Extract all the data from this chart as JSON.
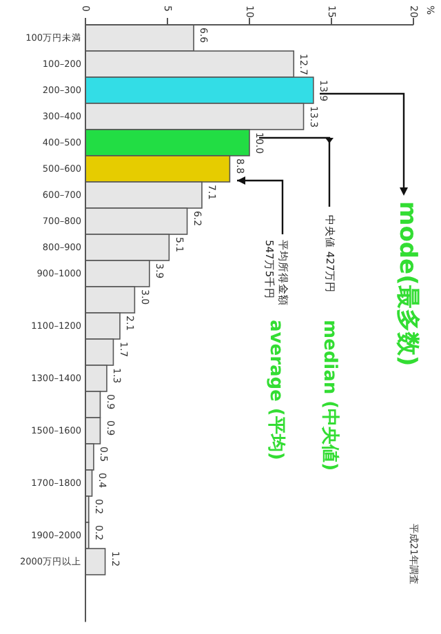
{
  "chart_data": {
    "type": "bar",
    "orientation": "horizontal",
    "categories": [
      "100万円未満",
      "100–200",
      "200–300",
      "300–400",
      "400–500",
      "500–600",
      "600–700",
      "700–800",
      "800–900",
      "900–1000",
      null,
      "1100–1200",
      null,
      "1300–1400",
      null,
      "1500–1600",
      null,
      "1700–1800",
      null,
      "1900–2000",
      "2000万円以上"
    ],
    "values": [
      6.6,
      12.7,
      13.9,
      13.3,
      10.0,
      8.8,
      7.1,
      6.2,
      5.1,
      3.9,
      3.0,
      2.1,
      1.7,
      1.3,
      0.9,
      0.9,
      0.5,
      0.4,
      0.2,
      0.2,
      1.2
    ],
    "value_labels": [
      "6.6",
      "12.7",
      "13.9",
      "13.3",
      "10.0",
      "8.8",
      "7.1",
      "6.2",
      "5.1",
      "3.9",
      "3.0",
      "2.1",
      "1.7",
      "1.3",
      "0.9",
      "0.9",
      "0.5",
      "0.4",
      "0.2",
      "0.2",
      "1.2"
    ],
    "colors": [
      "#e6e6e6",
      "#e6e6e6",
      "#33dde6",
      "#e6e6e6",
      "#22dd44",
      "#e6cc00",
      "#e6e6e6",
      "#e6e6e6",
      "#e6e6e6",
      "#e6e6e6",
      "#e6e6e6",
      "#e6e6e6",
      "#e6e6e6",
      "#e6e6e6",
      "#e6e6e6",
      "#e6e6e6",
      "#e6e6e6",
      "#e6e6e6",
      "#e6e6e6",
      "#e6e6e6",
      "#e6e6e6"
    ],
    "xlim": [
      0,
      20
    ],
    "xticks": [
      0,
      5,
      10,
      15,
      20
    ],
    "annotations": [
      "%",
      "mode(最多数)",
      "中央値 427万円",
      "median (中央値)",
      "平均所得金額 547万5千円",
      "average (平均)",
      "平成21年調査"
    ]
  }
}
